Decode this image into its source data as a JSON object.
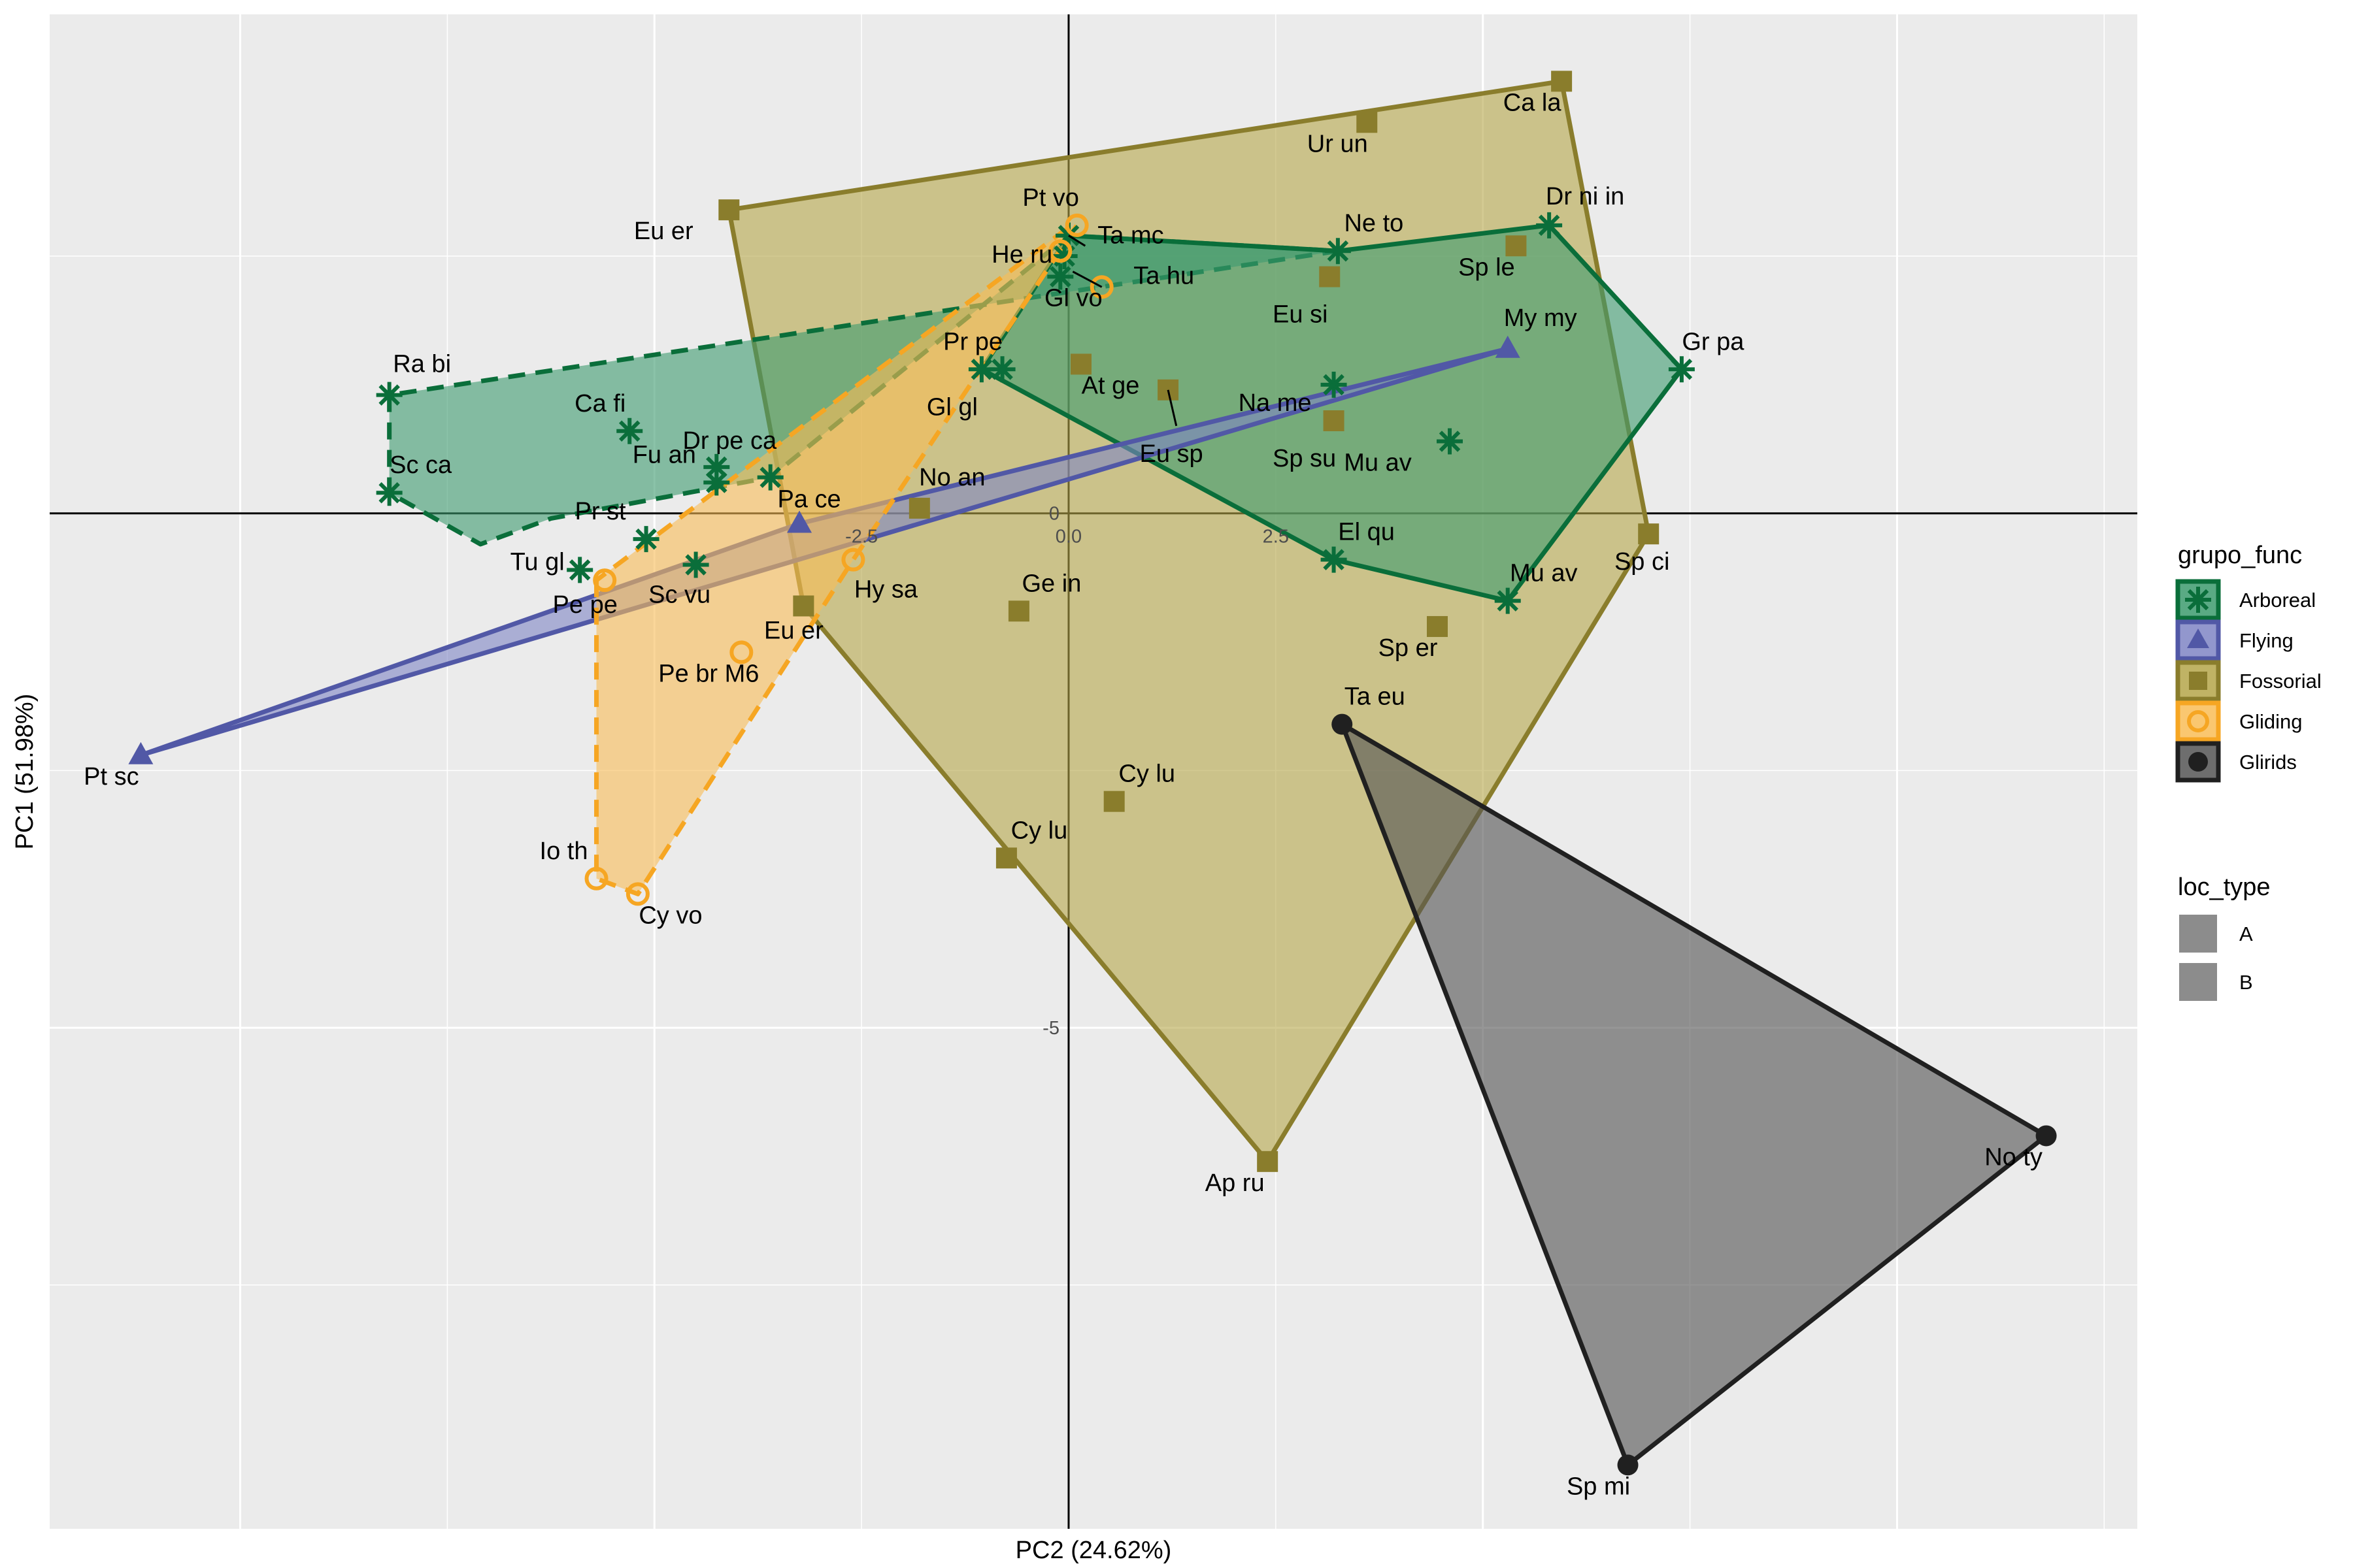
{
  "chart_data": {
    "type": "scatter",
    "xlabel": "PC2 (24.62%)",
    "ylabel": "PC1 (51.98%)",
    "xlim": [
      -12.3,
      12.9
    ],
    "ylim": [
      -9.87,
      4.85
    ],
    "x_ticks": [
      -2.5,
      0.0,
      2.5
    ],
    "y_ticks": [
      0,
      -5
    ],
    "grid": true,
    "legend_position": "right",
    "legend": {
      "grupo_func": {
        "title": "grupo_func",
        "entries": [
          "Arboreal",
          "Flying",
          "Fossorial",
          "Gliding",
          "Glirids"
        ]
      },
      "loc_type": {
        "title": "loc_type",
        "entries": [
          "A",
          "B"
        ]
      }
    },
    "colors": {
      "Arboreal": "#0a6e3a",
      "Arboreal_fill": "#3d9b6f",
      "Flying": "#5158a6",
      "Flying_fill": "#7f85c4",
      "Fossorial": "#8a7d2c",
      "Fossorial_fill": "#b5a64a",
      "Gliding": "#f6a623",
      "Gliding_fill": "#f9bd57",
      "Glirids": "#202020",
      "Glirids_fill": "#555555",
      "panel": "#ebebeb",
      "grid": "#ffffff"
    },
    "series": [
      {
        "name": "Arboreal",
        "shape": "asterisk",
        "hulls": [
          {
            "type": "B",
            "dashed": true,
            "points": [
              [
                -8.2,
                1.15
              ],
              [
                -8.2,
                0.2
              ],
              [
                -7.1,
                -0.3
              ],
              [
                -6.25,
                -0.05
              ],
              [
                -3.6,
                0.35
              ],
              [
                0,
                2.7
              ],
              [
                3.25,
                2.55
              ]
            ]
          },
          {
            "type": "A",
            "dashed": false,
            "points": [
              [
                -1.05,
                1.4
              ],
              [
                0,
                2.7
              ],
              [
                3.25,
                2.55
              ],
              [
                5.8,
                2.8
              ],
              [
                7.4,
                1.4
              ],
              [
                5.3,
                -0.85
              ],
              [
                3.2,
                -0.45
              ]
            ]
          }
        ],
        "points": [
          {
            "label": "Ra bi",
            "x": -8.2,
            "y": 1.15
          },
          {
            "label": "Sc ca",
            "x": -8.2,
            "y": 0.2
          },
          {
            "label": "Ca fi",
            "x": -5.3,
            "y": 0.8
          },
          {
            "label": "Dr pe ca",
            "x": -4.25,
            "y": 0.45
          },
          {
            "label": "Fu an",
            "x": -4.25,
            "y": 0.3
          },
          {
            "label": "",
            "x": -3.6,
            "y": 0.35
          },
          {
            "label": "Pr st",
            "x": -5.1,
            "y": -0.25
          },
          {
            "label": "Sc vu",
            "x": -4.5,
            "y": -0.5
          },
          {
            "label": "Tu gl",
            "x": -5.9,
            "y": -0.55
          },
          {
            "label": "Pr pe",
            "x": -0.8,
            "y": 1.4
          },
          {
            "label": "Gl gl",
            "x": -1.05,
            "y": 1.4
          },
          {
            "label": "Ta mc",
            "x": 0,
            "y": 2.7
          },
          {
            "label": "He ru",
            "x": -0.05,
            "y": 2.5
          },
          {
            "label": "Gl vo",
            "x": -0.1,
            "y": 2.3
          },
          {
            "label": "Ne to",
            "x": 3.25,
            "y": 2.55
          },
          {
            "label": "Na me",
            "x": 3.2,
            "y": 1.25
          },
          {
            "label": "Mu av",
            "x": 4.6,
            "y": 0.7
          },
          {
            "label": "El qu",
            "x": 3.2,
            "y": -0.45
          },
          {
            "label": "Mu av",
            "x": 5.3,
            "y": -0.85
          },
          {
            "label": "Dr ni in",
            "x": 5.8,
            "y": 2.8
          },
          {
            "label": "Gr pa",
            "x": 7.4,
            "y": 1.4
          }
        ]
      },
      {
        "name": "Flying",
        "shape": "triangle",
        "hulls": [
          {
            "type": "A",
            "dashed": false,
            "points": [
              [
                -11.2,
                -2.35
              ],
              [
                -3.25,
                -0.1
              ],
              [
                5.3,
                1.6
              ]
            ]
          }
        ],
        "points": [
          {
            "label": "Pt sc",
            "x": -11.2,
            "y": -2.35
          },
          {
            "label": "Pa ce",
            "x": -3.25,
            "y": -0.1
          },
          {
            "label": "My my",
            "x": 5.3,
            "y": 1.6
          }
        ]
      },
      {
        "name": "Fossorial",
        "shape": "square",
        "hulls": [
          {
            "type": "A",
            "dashed": false,
            "points": [
              [
                -4.1,
                2.95
              ],
              [
                5.95,
                4.2
              ],
              [
                7.0,
                -0.2
              ],
              [
                2.4,
                -6.3
              ],
              [
                -3.2,
                -0.9
              ]
            ]
          }
        ],
        "points": [
          {
            "label": "Eu er",
            "x": -4.1,
            "y": 2.95
          },
          {
            "label": "Ur un",
            "x": 3.6,
            "y": 3.8
          },
          {
            "label": "Ca la",
            "x": 5.95,
            "y": 4.2
          },
          {
            "label": "Sp le",
            "x": 5.4,
            "y": 2.6
          },
          {
            "label": "Eu si",
            "x": 3.15,
            "y": 2.3
          },
          {
            "label": "At ge",
            "x": 0.15,
            "y": 1.45
          },
          {
            "label": "Eu sp",
            "x": 1.2,
            "y": 1.2
          },
          {
            "label": "Sp su",
            "x": 3.2,
            "y": 0.9
          },
          {
            "label": "No an",
            "x": -1.8,
            "y": 0.05
          },
          {
            "label": "Sp ci",
            "x": 7.0,
            "y": -0.2
          },
          {
            "label": "Ge in",
            "x": -0.6,
            "y": -0.95
          },
          {
            "label": "Eu er",
            "x": -3.2,
            "y": -0.9
          },
          {
            "label": "Sp er",
            "x": 4.45,
            "y": -1.1
          },
          {
            "label": "Cy lu",
            "x": 0.55,
            "y": -2.8
          },
          {
            "label": "Cy lu",
            "x": -0.75,
            "y": -3.35
          },
          {
            "label": "Ap ru",
            "x": 2.4,
            "y": -6.3
          }
        ]
      },
      {
        "name": "Gliding",
        "shape": "circle-open",
        "hulls": [
          {
            "type": "B",
            "dashed": true,
            "points": [
              [
                -5.7,
                -0.65
              ],
              [
                -5.7,
                -3.55
              ],
              [
                -5.2,
                -3.7
              ],
              [
                -2.6,
                -0.45
              ],
              [
                0.1,
                2.8
              ],
              [
                -0.05,
                2.75
              ]
            ]
          }
        ],
        "points": [
          {
            "label": "Pt vo",
            "x": 0.1,
            "y": 2.8
          },
          {
            "label": "Ta hu",
            "x": 0.4,
            "y": 2.2
          },
          {
            "label": "",
            "x": -0.1,
            "y": 2.55
          },
          {
            "label": "Hy sa",
            "x": -2.6,
            "y": -0.45
          },
          {
            "label": "Pe pe",
            "x": -5.6,
            "y": -0.65
          },
          {
            "label": "Pe br M6",
            "x": -3.95,
            "y": -1.35
          },
          {
            "label": "Io th",
            "x": -5.7,
            "y": -3.55
          },
          {
            "label": "Cy vo",
            "x": -5.2,
            "y": -3.7
          }
        ]
      },
      {
        "name": "Glirids",
        "shape": "circle",
        "hulls": [
          {
            "type": "A",
            "dashed": false,
            "points": [
              [
                3.3,
                -2.05
              ],
              [
                11.8,
                -6.05
              ],
              [
                6.75,
                -9.25
              ]
            ]
          }
        ],
        "points": [
          {
            "label": "Ta eu",
            "x": 3.3,
            "y": -2.05
          },
          {
            "label": "No ty",
            "x": 11.8,
            "y": -6.05
          },
          {
            "label": "Sp mi",
            "x": 6.75,
            "y": -9.25
          }
        ]
      }
    ]
  }
}
